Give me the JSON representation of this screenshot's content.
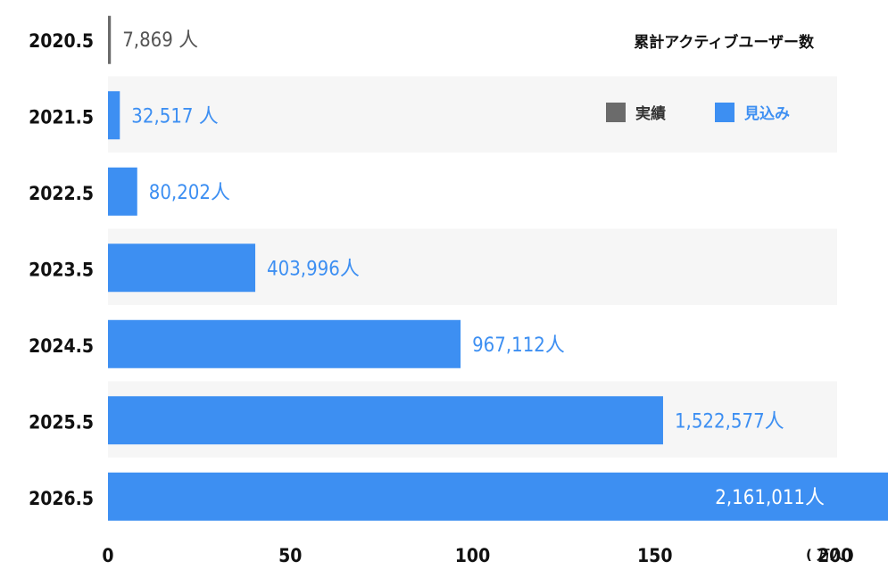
{
  "chart_data": {
    "type": "bar",
    "orientation": "horizontal",
    "title": "累計アクティブユーザー数",
    "categories": [
      "2020.5",
      "2021.5",
      "2022.5",
      "2023.5",
      "2024.5",
      "2025.5",
      "2026.5"
    ],
    "values": [
      7869,
      32517,
      80202,
      403996,
      967112,
      1522577,
      2161011
    ],
    "value_labels": [
      "7,869 人",
      "32,517 人",
      "80,202人",
      "403,996人",
      "967,112人",
      "1,522,577人",
      "2,161,011人"
    ],
    "value_type": [
      "actual",
      "projected",
      "projected",
      "projected",
      "projected",
      "projected",
      "projected"
    ],
    "x_unit_divisor": 10000,
    "xlim": [
      0,
      200
    ],
    "x_ticks": [
      "0",
      "50",
      "100",
      "150",
      "200"
    ],
    "x_tick_values": [
      0,
      50,
      100,
      150,
      200
    ],
    "x_unit_label": "( 万人 )",
    "legend": {
      "position": "top-right",
      "items": [
        {
          "label": "実績",
          "color": "#6b6b6b"
        },
        {
          "label": "見込み",
          "color": "#3d8ff2"
        }
      ]
    },
    "colors": {
      "actual": "#6b6b6b",
      "projected": "#3d8ff2",
      "actual_text": "#555555",
      "projected_text": "#3d8ff2",
      "inside_text": "#ffffff",
      "band": "#f6f6f6"
    },
    "grid": false
  }
}
